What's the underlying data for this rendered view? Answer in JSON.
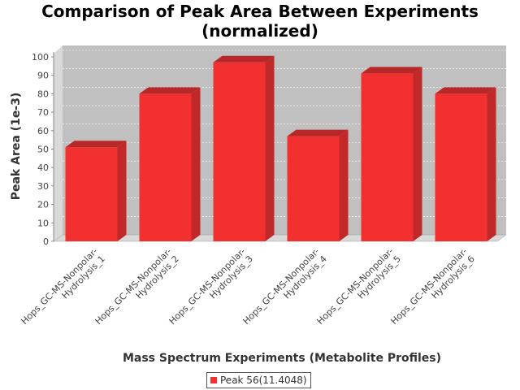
{
  "chart_data": {
    "type": "bar",
    "title_lines": [
      "Comparison of Peak Area Between Experiments",
      "(normalized)"
    ],
    "xlabel": "Mass Spectrum Experiments (Metabolite Profiles)",
    "ylabel": "Peak Area (1e-3)",
    "categories": [
      [
        "Hops_GC-MS-Nonpolar-",
        "Hydrolysis_1"
      ],
      [
        "Hops_GC-MS-Nonpolar-",
        "Hydrolysis_2"
      ],
      [
        "Hops_GC-MS-Nonpolar-",
        "Hydrolysis_3"
      ],
      [
        "Hops_GC-MS-Nonpolar-",
        "Hydrolysis_4"
      ],
      [
        "Hops_GC-MS-Nonpolar-",
        "Hydrolysis_5"
      ],
      [
        "Hops_GC-MS-Nonpolar-",
        "Hydrolysis_6"
      ]
    ],
    "series": [
      {
        "name": "Peak 56(11.4048)",
        "values": [
          51,
          80,
          97,
          57,
          91,
          80
        ]
      }
    ],
    "ylim": [
      0,
      100
    ],
    "yticks": [
      0,
      10,
      20,
      30,
      40,
      50,
      60,
      70,
      80,
      90,
      100
    ],
    "grid": true,
    "legend_position": "bottom",
    "colors": {
      "bar": "#f23030",
      "bar_top": "#b82828",
      "bar_side": "#c12828",
      "plot_bg": "#c0c0c0"
    }
  }
}
